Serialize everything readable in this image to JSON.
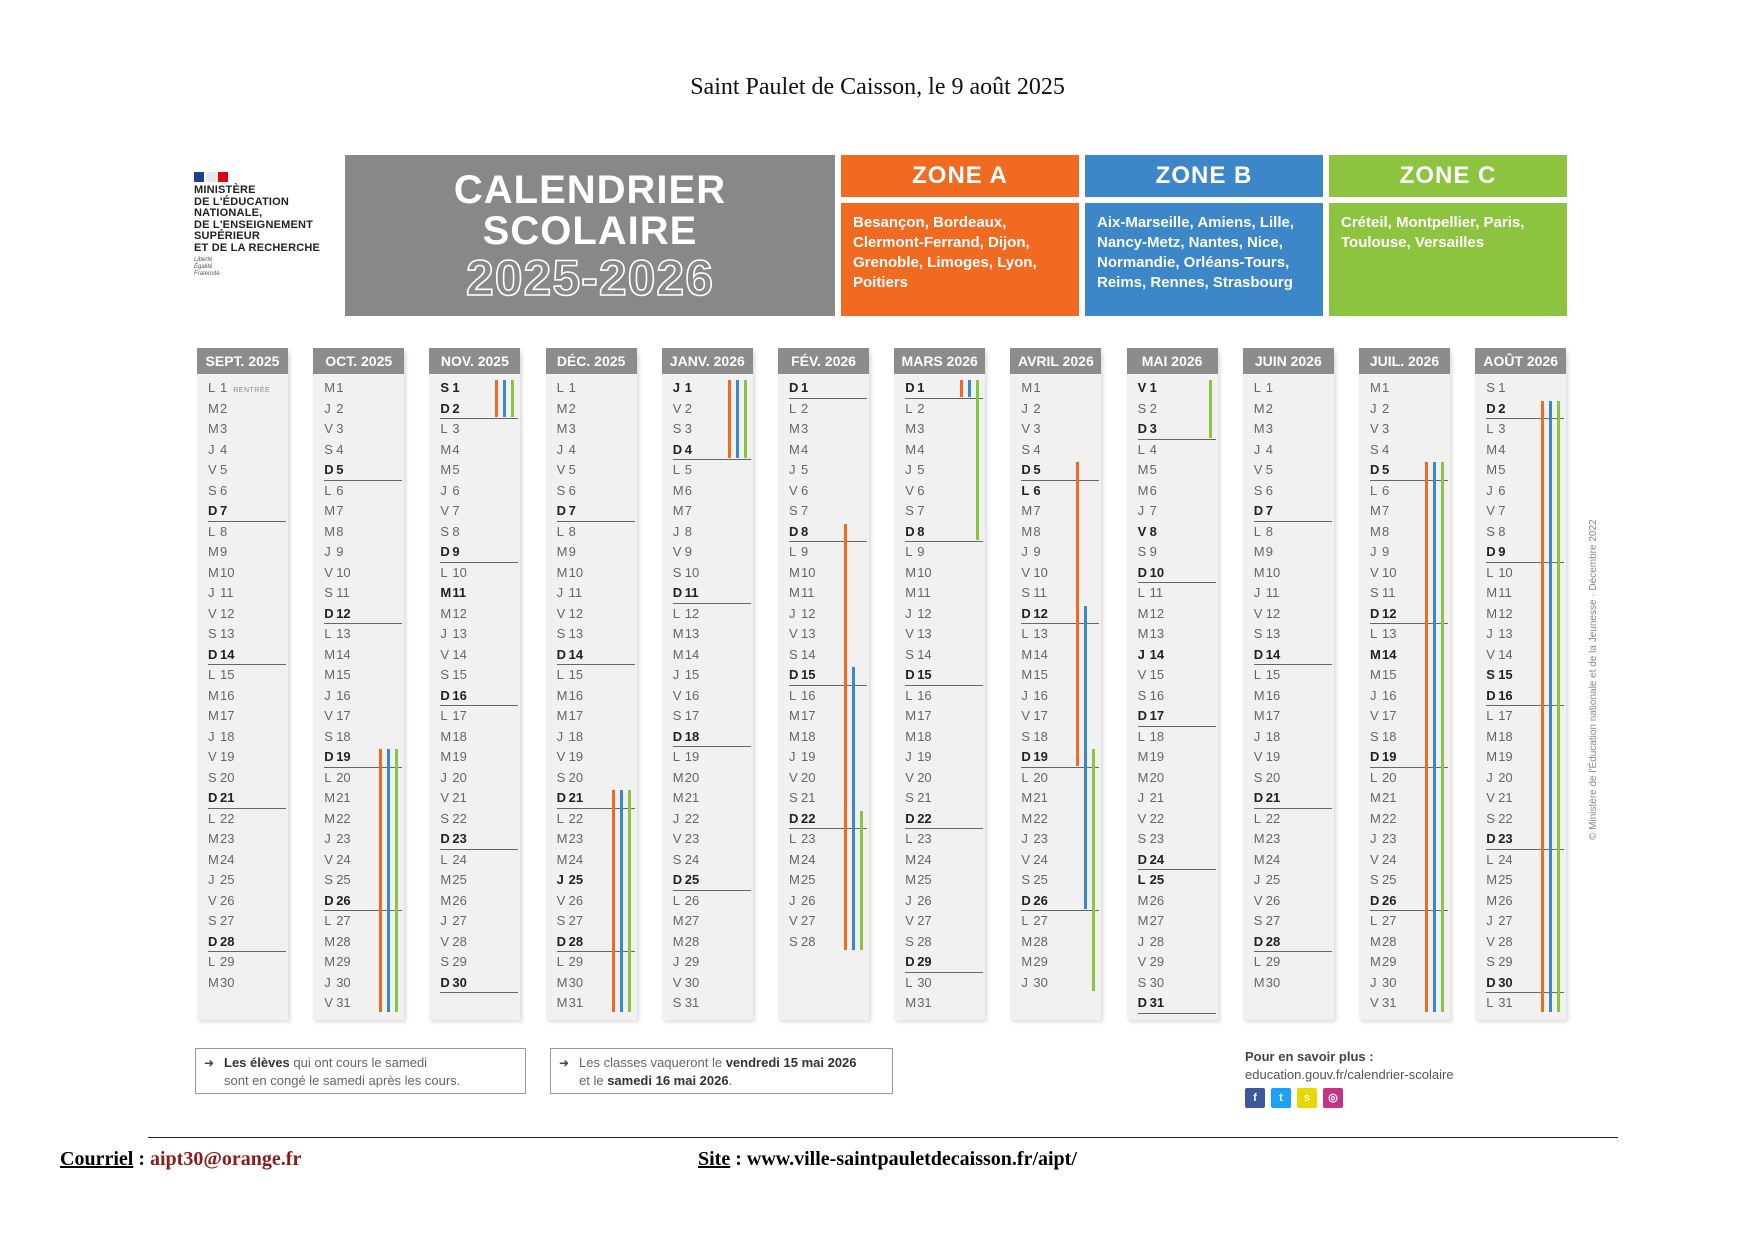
{
  "header": {
    "date_line": "Saint Paulet de Caisson, le 9 août 2025"
  },
  "logo": {
    "ministry_lines": [
      "MINISTÈRE",
      "DE L'ÉDUCATION",
      "NATIONALE,",
      "DE L'ENSEIGNEMENT",
      "SUPÉRIEUR",
      "ET DE LA RECHERCHE"
    ],
    "motto_lines": [
      "Liberté",
      "Égalité",
      "Fraternité"
    ]
  },
  "title": {
    "line1": "CALENDRIER",
    "line2": "SCOLAIRE",
    "years": "2025-2026"
  },
  "zones": [
    {
      "label": "ZONE A",
      "color": "#f06a21",
      "cities": [
        "Besançon, Bordeaux,",
        "Clermont-Ferrand, Dijon,",
        "Grenoble, Limoges, Lyon,",
        "Poitiers"
      ]
    },
    {
      "label": "ZONE B",
      "color": "#3d87c9",
      "cities": [
        "Aix-Marseille, Amiens, Lille,",
        "Nancy-Metz, Nantes, Nice,",
        "Normandie, Orléans-Tours,",
        "Reims, Rennes, Strasbourg"
      ]
    },
    {
      "label": "ZONE C",
      "color": "#8cc43f",
      "cities": [
        "Créteil, Montpellier, Paris,",
        "Toulouse, Versailles"
      ]
    }
  ],
  "months": [
    {
      "label": "SEPT. 2025",
      "days": 30,
      "start": 0,
      "bold": [
        7,
        14,
        21,
        28
      ],
      "rentree_label": "RENTRÉE"
    },
    {
      "label": "OCT. 2025",
      "days": 31,
      "start": 2,
      "bold": [
        5,
        12,
        19,
        26
      ]
    },
    {
      "label": "NOV. 2025",
      "days": 30,
      "start": 5,
      "bold": [
        1,
        2,
        9,
        11,
        16,
        23,
        30
      ]
    },
    {
      "label": "DÉC. 2025",
      "days": 31,
      "start": 0,
      "bold": [
        7,
        14,
        21,
        25,
        28
      ]
    },
    {
      "label": "JANV. 2026",
      "days": 31,
      "start": 3,
      "bold": [
        1,
        4,
        11,
        18,
        25
      ]
    },
    {
      "label": "FÉV. 2026",
      "days": 28,
      "start": 6,
      "bold": [
        1,
        8,
        15,
        22
      ]
    },
    {
      "label": "MARS 2026",
      "days": 31,
      "start": 6,
      "bold": [
        1,
        8,
        15,
        22,
        29
      ]
    },
    {
      "label": "AVRIL 2026",
      "days": 30,
      "start": 2,
      "bold": [
        5,
        6,
        12,
        19,
        26
      ]
    },
    {
      "label": "MAI 2026",
      "days": 31,
      "start": 4,
      "bold": [
        1,
        3,
        8,
        10,
        14,
        17,
        24,
        25,
        31
      ]
    },
    {
      "label": "JUIN 2026",
      "days": 30,
      "start": 0,
      "bold": [
        7,
        14,
        21,
        28
      ]
    },
    {
      "label": "JUIL. 2026",
      "days": 31,
      "start": 2,
      "bold": [
        5,
        12,
        14,
        19,
        26
      ]
    },
    {
      "label": "AOÛT 2026",
      "days": 31,
      "start": 5,
      "bold": [
        2,
        9,
        15,
        16,
        23,
        30
      ]
    }
  ],
  "weekday_letters": [
    "L",
    "M",
    "M",
    "J",
    "V",
    "S",
    "D"
  ],
  "holidays": [
    {
      "month": 1,
      "zone": 0,
      "from": 19,
      "to": 31
    },
    {
      "month": 1,
      "zone": 1,
      "from": 19,
      "to": 31
    },
    {
      "month": 1,
      "zone": 2,
      "from": 19,
      "to": 31
    },
    {
      "month": 2,
      "zone": 0,
      "from": 1,
      "to": 2
    },
    {
      "month": 2,
      "zone": 1,
      "from": 1,
      "to": 2
    },
    {
      "month": 2,
      "zone": 2,
      "from": 1,
      "to": 2
    },
    {
      "month": 3,
      "zone": 0,
      "from": 21,
      "to": 31
    },
    {
      "month": 3,
      "zone": 1,
      "from": 21,
      "to": 31
    },
    {
      "month": 3,
      "zone": 2,
      "from": 21,
      "to": 31
    },
    {
      "month": 4,
      "zone": 0,
      "from": 1,
      "to": 4
    },
    {
      "month": 4,
      "zone": 1,
      "from": 1,
      "to": 4
    },
    {
      "month": 4,
      "zone": 2,
      "from": 1,
      "to": 4
    },
    {
      "month": 5,
      "zone": 0,
      "from": 8,
      "to": 28
    },
    {
      "month": 5,
      "zone": 1,
      "from": 15,
      "to": 28
    },
    {
      "month": 5,
      "zone": 2,
      "from": 22,
      "to": 28
    },
    {
      "month": 6,
      "zone": 0,
      "from": 1,
      "to": 1
    },
    {
      "month": 6,
      "zone": 1,
      "from": 1,
      "to": 1
    },
    {
      "month": 6,
      "zone": 2,
      "from": 1,
      "to": 8
    },
    {
      "month": 7,
      "zone": 0,
      "from": 5,
      "to": 19
    },
    {
      "month": 7,
      "zone": 1,
      "from": 12,
      "to": 26
    },
    {
      "month": 7,
      "zone": 2,
      "from": 19,
      "to": 30
    },
    {
      "month": 8,
      "zone": 2,
      "from": 1,
      "to": 3
    },
    {
      "month": 10,
      "zone": 0,
      "from": 5,
      "to": 31
    },
    {
      "month": 10,
      "zone": 1,
      "from": 5,
      "to": 31
    },
    {
      "month": 10,
      "zone": 2,
      "from": 5,
      "to": 31
    },
    {
      "month": 11,
      "zone": 0,
      "from": 2,
      "to": 31
    },
    {
      "month": 11,
      "zone": 1,
      "from": 2,
      "to": 31
    },
    {
      "month": 11,
      "zone": 2,
      "from": 2,
      "to": 31
    }
  ],
  "notes": {
    "note1_bold": "Les élèves",
    "note1_rest": " qui ont cours le samedi",
    "note1_line2": "sont en congé le samedi après les cours.",
    "note2_pre": "Les classes vaqueront le ",
    "note2_bold1": "vendredi 15 mai 2026",
    "note2_line2_pre": "et le ",
    "note2_bold2": "samedi 16 mai 2026",
    "note2_end": "."
  },
  "more_info": {
    "label": "Pour en savoir plus :",
    "url": "education.gouv.fr/calendrier-scolaire"
  },
  "copyright": "© Ministère de l'Éducation nationale et de la Jeunesse · Décembre 2022",
  "footer": {
    "email_label": "Courriel",
    "email_sep": " : ",
    "email_value": "aipt30@orange.fr",
    "site_label": "Site",
    "site_sep": " : ",
    "site_value": "www.ville-saintpauletdecaisson.fr/aipt/"
  }
}
